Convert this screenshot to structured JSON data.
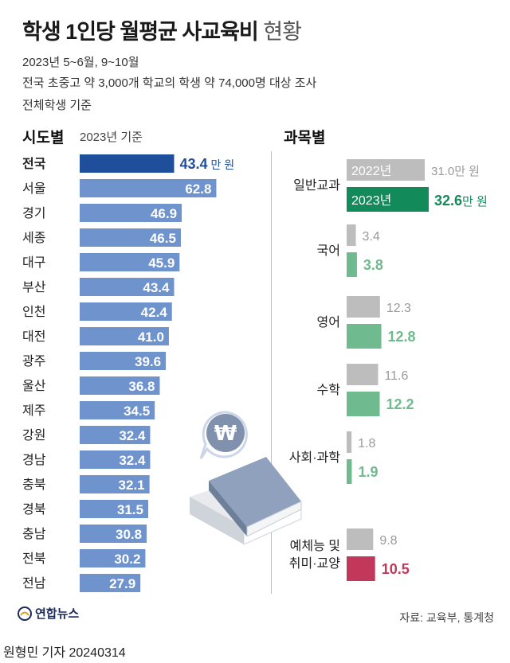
{
  "header": {
    "title_main": "학생 1인당 월평균 사교육비",
    "title_light": "현황",
    "period": "2023년 5~6월, 9~10월",
    "survey": "전국 초중고 약 3,000개 학교의 학생 약 74,000명 대상 조사",
    "basis": "전체학생 기준"
  },
  "chart_data": [
    {
      "type": "bar",
      "orientation": "horizontal",
      "title": "시도별",
      "subtitle": "2023년 기준",
      "unit": "만 원",
      "categories": [
        "전국",
        "서울",
        "경기",
        "세종",
        "대구",
        "부산",
        "인천",
        "대전",
        "광주",
        "울산",
        "제주",
        "강원",
        "경남",
        "충북",
        "경북",
        "충남",
        "전북",
        "전남"
      ],
      "values": [
        43.4,
        62.8,
        46.9,
        46.5,
        45.9,
        43.4,
        42.4,
        41.0,
        39.6,
        36.8,
        34.5,
        32.4,
        32.4,
        32.1,
        31.5,
        30.8,
        30.2,
        27.9
      ],
      "value_labels": [
        "43.4",
        "62.8",
        "46.9",
        "46.5",
        "45.9",
        "43.4",
        "42.4",
        "41.0",
        "39.6",
        "36.8",
        "34.5",
        "32.4",
        "32.4",
        "32.1",
        "31.5",
        "30.8",
        "30.2",
        "27.9"
      ],
      "first_unit_label": "만 원",
      "highlight": "전국",
      "colors": {
        "highlight": "#1f4e9a",
        "bar": "#6f93cd",
        "label_dark": "#1f4e9a",
        "label_in": "#ffffff"
      }
    },
    {
      "type": "bar",
      "orientation": "horizontal",
      "title": "과목별",
      "unit": "만 원",
      "categories": [
        "일반교과",
        "국어",
        "영어",
        "수학",
        "사회·과학",
        "예체능 및\n취미·교양"
      ],
      "series": [
        {
          "name": "2022년",
          "values": [
            31.0,
            3.4,
            12.3,
            11.6,
            1.8,
            9.8
          ],
          "value_labels": [
            "31.0만 원",
            "3.4",
            "12.3",
            "11.6",
            "1.8",
            "9.8"
          ]
        },
        {
          "name": "2023년",
          "values": [
            32.6,
            3.8,
            12.8,
            12.2,
            1.9,
            10.5
          ],
          "value_labels": [
            "32.6만 원",
            "3.8",
            "12.8",
            "12.2",
            "1.9",
            "10.5"
          ]
        }
      ],
      "colors": {
        "y2022": "#bdbdbd",
        "y2023_total": "#138a5a",
        "y2023": "#6fba8e",
        "y2023_last": "#c1385a",
        "label_2022": "#9a9a9a"
      }
    }
  ],
  "footer": {
    "logo": "연합뉴스",
    "source": "자료: 교육부, 통계청",
    "credit": "원형민 기자  20240314"
  },
  "illustration": {
    "symbol": "₩"
  }
}
